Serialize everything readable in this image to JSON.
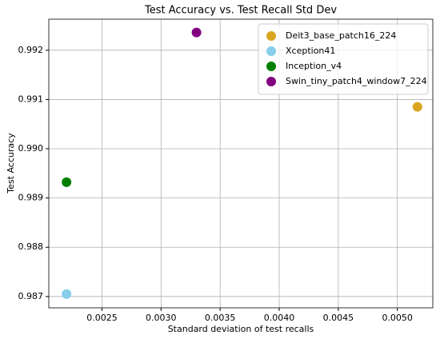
{
  "chart_data": {
    "type": "scatter",
    "title": "Test Accuracy vs. Test Recall Std Dev",
    "xlabel": "Standard deviation of test recalls",
    "ylabel": "Test Accuracy",
    "series": [
      {
        "name": "Deit3_base_patch16_224",
        "color": "#daa520",
        "x": [
          0.00517
        ],
        "values": [
          0.99085
        ]
      },
      {
        "name": "Xception41",
        "color": "#87ceeb",
        "x": [
          0.0022
        ],
        "values": [
          0.98705
        ]
      },
      {
        "name": "Inception_v4",
        "color": "#008000",
        "x": [
          0.0022
        ],
        "values": [
          0.98932
        ]
      },
      {
        "name": "Swin_tiny_patch4_window7_224",
        "color": "#800080",
        "x": [
          0.0033
        ],
        "values": [
          0.99236
        ]
      }
    ],
    "xlim": [
      0.00205,
      0.0053
    ],
    "xticks": [
      0.0025,
      {
        "value": 0.003,
        "label": "0.0030"
      },
      0.0035,
      {
        "value": 0.004,
        "label": "0.0040"
      },
      0.0045,
      {
        "value": 0.005,
        "label": "0.0050"
      }
    ],
    "ylim": [
      0.98677,
      0.99263
    ],
    "yticks": [
      0.987,
      0.988,
      0.989,
      {
        "value": 0.99,
        "label": "0.990"
      },
      0.991,
      0.992
    ],
    "grid": true,
    "legend": "upper right"
  }
}
